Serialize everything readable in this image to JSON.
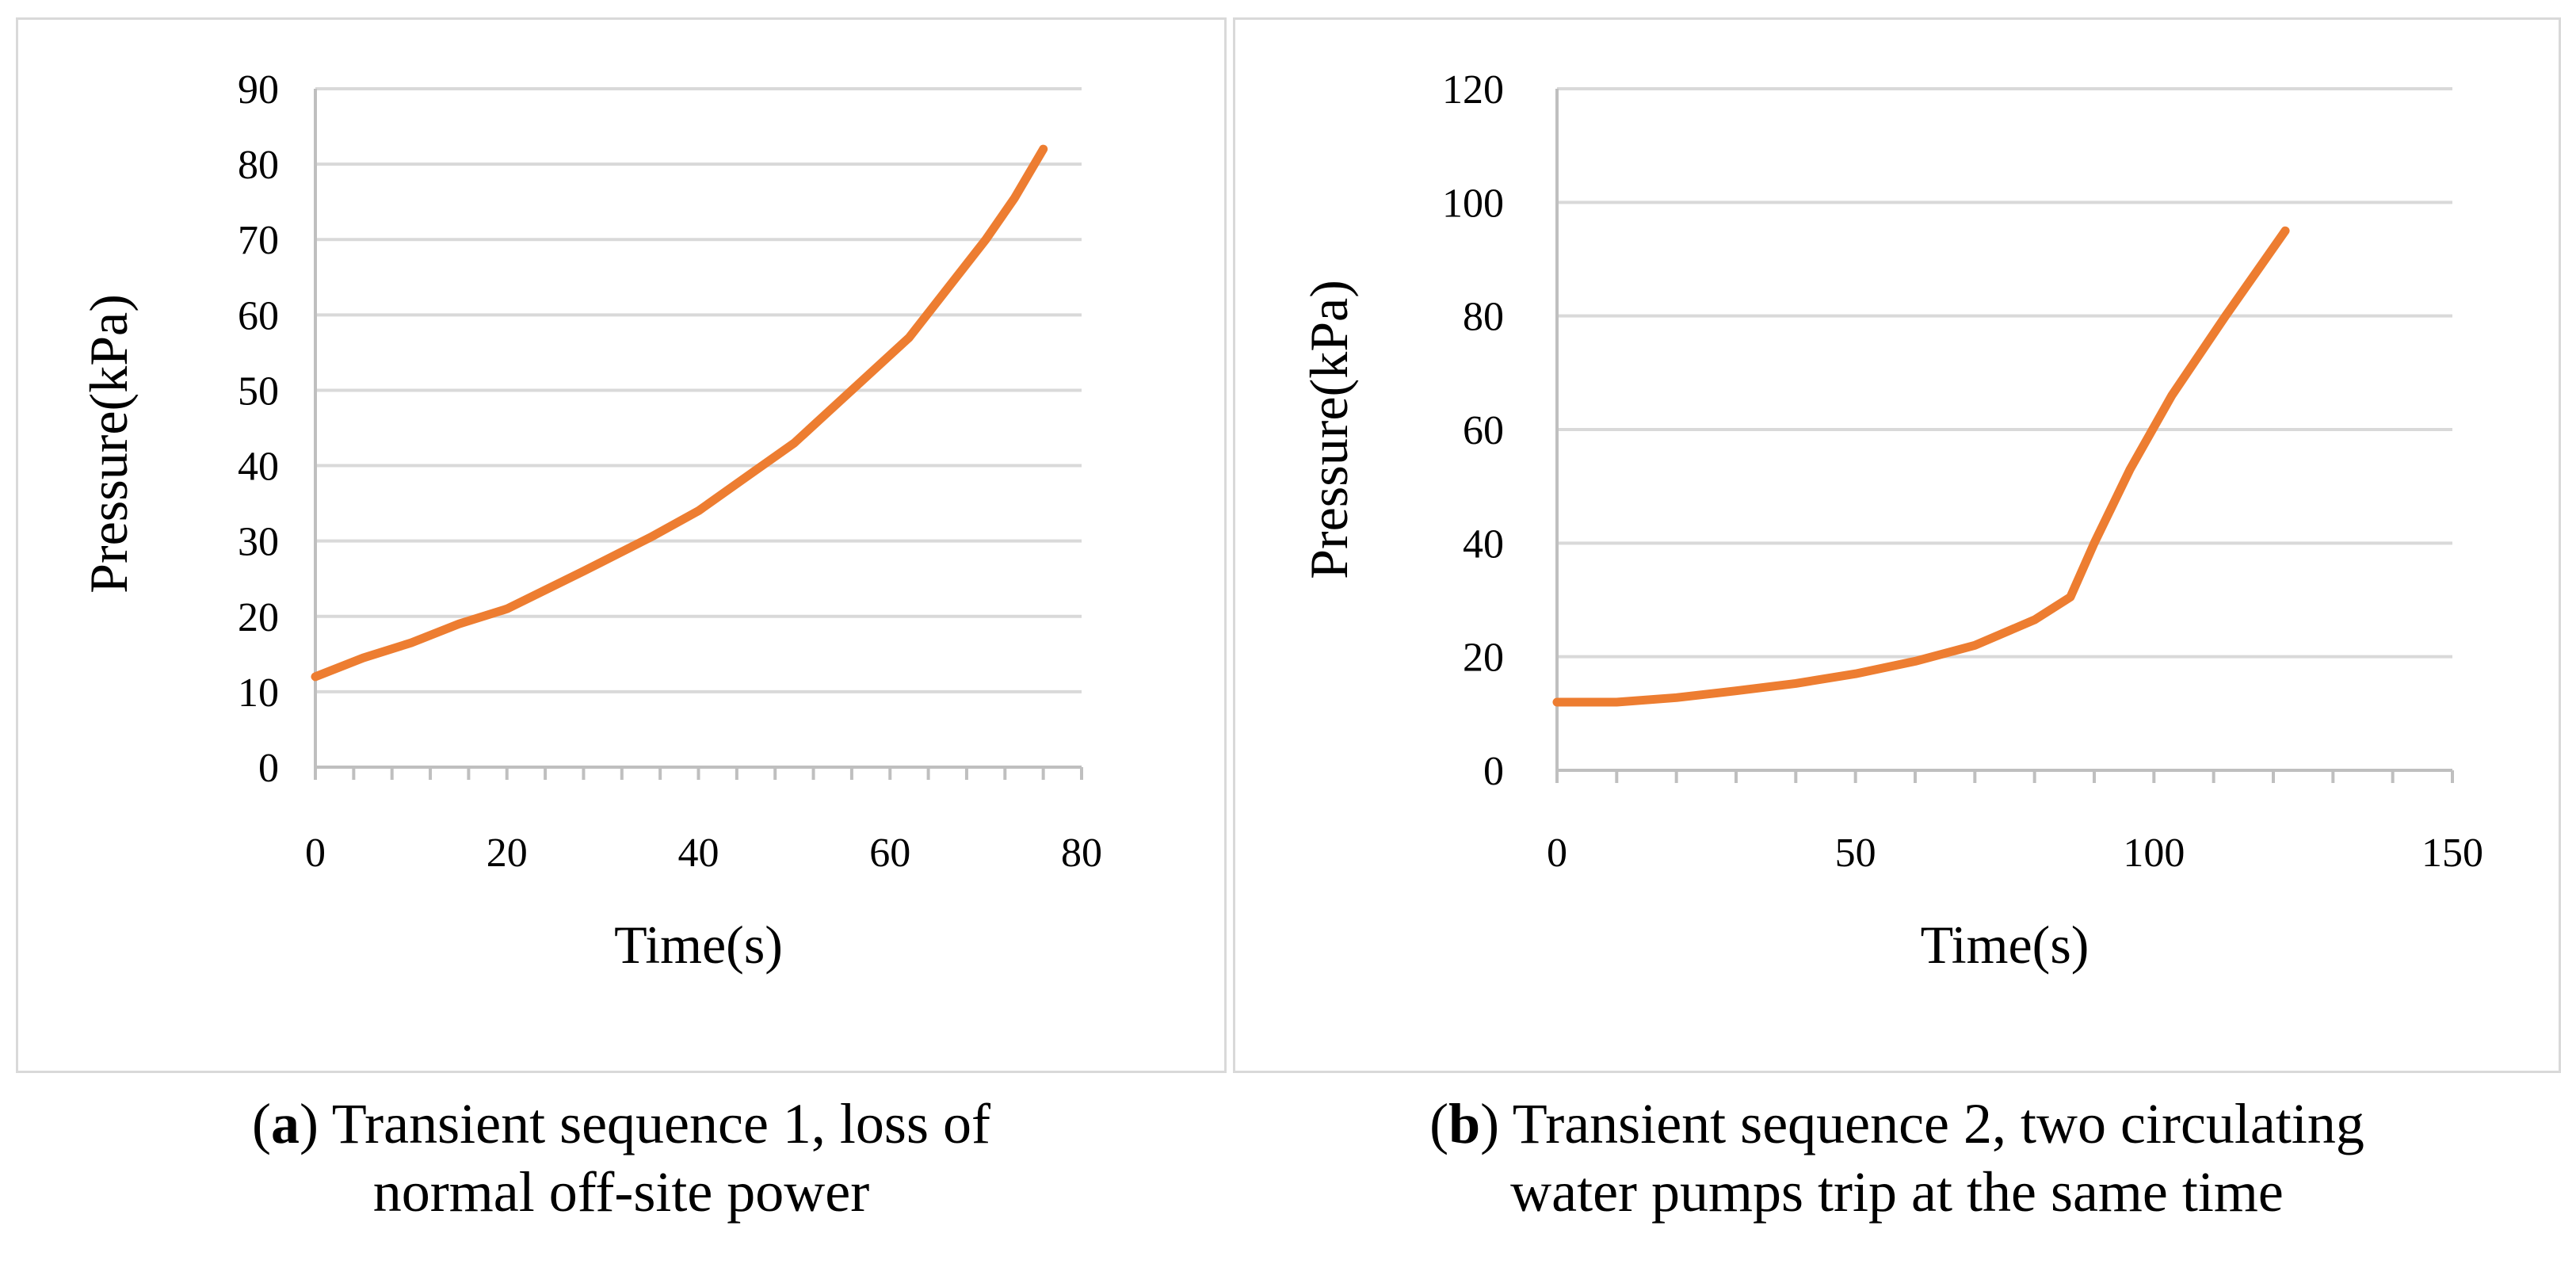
{
  "colors": {
    "line": "#ed7d31",
    "grid": "#d9d9d9",
    "axis": "#bfbfbf",
    "border": "#d9d9d9"
  },
  "chart_data": [
    {
      "id": "a",
      "type": "line",
      "xlabel": "Time(s)",
      "ylabel": "Pressure(kPa)",
      "xlim": [
        0,
        80
      ],
      "ylim": [
        0,
        90
      ],
      "xticks": [
        0,
        20,
        40,
        60,
        80
      ],
      "yticks": [
        0,
        10,
        20,
        30,
        40,
        50,
        60,
        70,
        80,
        90
      ],
      "minor_x_step": 4,
      "grid": true,
      "series": [
        {
          "name": "Pressure",
          "x": [
            0,
            5,
            10,
            15,
            20,
            28,
            35,
            40,
            45,
            50,
            56,
            62,
            66,
            70,
            73,
            76
          ],
          "y": [
            12,
            14.5,
            16.5,
            19,
            21,
            26,
            30.5,
            34,
            38.5,
            43,
            50,
            57,
            63.5,
            70,
            75.5,
            82
          ]
        }
      ],
      "caption": {
        "label": "a",
        "line1": ") Transient sequence 1, loss of",
        "line2": "normal off-site power"
      }
    },
    {
      "id": "b",
      "type": "line",
      "xlabel": "Time(s)",
      "ylabel": "Pressure(kPa)",
      "xlim": [
        0,
        150
      ],
      "ylim": [
        0,
        120
      ],
      "xticks": [
        0,
        50,
        100,
        150
      ],
      "yticks": [
        0,
        20,
        40,
        60,
        80,
        100,
        120
      ],
      "minor_x_step": 10,
      "grid": true,
      "series": [
        {
          "name": "Pressure",
          "x": [
            0,
            10,
            20,
            30,
            40,
            50,
            60,
            70,
            80,
            86,
            90,
            96,
            103,
            112,
            122
          ],
          "y": [
            12,
            12,
            12.8,
            14,
            15.3,
            17,
            19.2,
            22,
            26.5,
            30.5,
            40,
            53,
            66,
            80,
            95
          ]
        }
      ],
      "caption": {
        "label": "b",
        "line1": ") Transient sequence 2, two circulating",
        "line2": "water pumps trip at the same time"
      }
    }
  ]
}
